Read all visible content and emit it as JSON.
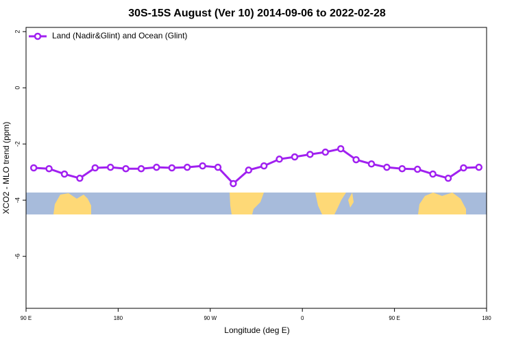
{
  "chart_data": {
    "type": "line",
    "title": "30S-15S August (Ver 10)   2014-09-06 to 2022-02-28",
    "x_label": "Longitude (deg E)",
    "y_label": "XCO2 - MLO trend (ppm)",
    "x": [
      97.5,
      112.5,
      127.5,
      142.5,
      157.5,
      172.5,
      187.5,
      202.5,
      217.5,
      232.5,
      247.5,
      262.5,
      277.5,
      292.5,
      307.5,
      322.5,
      337.5,
      352.5,
      367.5,
      382.5,
      397.5,
      412.5,
      427.5,
      442.5,
      457.5,
      472.5,
      487.5,
      502.5,
      517.5,
      532.5
    ],
    "series": [
      {
        "name": "Land (Nadir&Glint) and Ocean (Glint)",
        "color": "#a020f0",
        "values": [
          -2.85,
          -2.88,
          -3.07,
          -3.22,
          -2.85,
          -2.83,
          -2.88,
          -2.88,
          -2.83,
          -2.85,
          -2.83,
          -2.78,
          -2.83,
          -3.41,
          -2.93,
          -2.78,
          -2.54,
          -2.46,
          -2.37,
          -2.29,
          -2.17,
          -2.56,
          -2.71,
          -2.83,
          -2.88,
          -2.9,
          -3.07,
          -3.22,
          -2.85,
          -2.83
        ]
      }
    ],
    "xlim": [
      90,
      540
    ],
    "xticks": [
      {
        "value": 90,
        "label": "90 E"
      },
      180,
      {
        "value": 270,
        "label": "90 W"
      },
      {
        "value": 360,
        "label": "0"
      },
      {
        "value": 450,
        "label": "90 E"
      },
      {
        "value": 540,
        "label": "180"
      }
    ],
    "ylim": [
      -7.85,
      2.15
    ],
    "yticks": [
      2,
      0,
      -2,
      -4,
      -6
    ],
    "legend": "top-left"
  }
}
